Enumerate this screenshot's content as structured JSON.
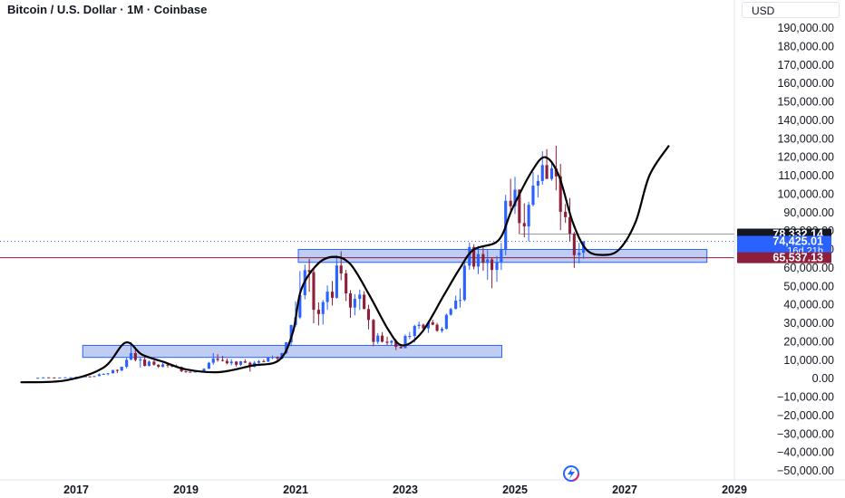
{
  "header": {
    "title": "Bitcoin / U.S. Dollar · 1M · Coinbase",
    "currency_label": "USD"
  },
  "colors": {
    "up": "#2962ff",
    "down": "#8e1f3a",
    "zone_fill": "#b4c3f2",
    "zone_stroke": "#2962ff",
    "text": "#131722",
    "axis_line": "#e0e3eb"
  },
  "logo": {
    "icon": "tradingview-bolt-icon"
  },
  "chart_data": {
    "type": "candlestick",
    "yaxis": {
      "min": -50000,
      "max": 190000,
      "ticks": [
        "190,000.00",
        "180,000.00",
        "170,000.00",
        "160,000.00",
        "150,000.00",
        "140,000.00",
        "130,000.00",
        "120,000.00",
        "110,000.00",
        "100,000.00",
        "90,000.00",
        "80,000.00",
        "70,000.00",
        "60,000.00",
        "50,000.00",
        "40,000.00",
        "30,000.00",
        "20,000.00",
        "10,000.00",
        "0.00",
        "−10,000.00",
        "−20,000.00",
        "−30,000.00",
        "−40,000.00",
        "−50,000.00"
      ]
    },
    "xaxis": {
      "labels": [
        "2017",
        "2019",
        "2021",
        "2023",
        "2025",
        "2027",
        "2029"
      ],
      "years": [
        2017,
        2019,
        2021,
        2023,
        2025,
        2027,
        2029
      ]
    },
    "price_tags": [
      {
        "value": 78332.14,
        "label": "78,332.14",
        "sub": "",
        "bg": "#131722",
        "fg": "#ffffff"
      },
      {
        "value": 74425.01,
        "label": "74,425.01",
        "sub": "16d 21h",
        "bg": "#2962ff",
        "fg": "#ffffff"
      },
      {
        "value": 65537.13,
        "label": "65,537.13",
        "sub": "",
        "bg": "#8e1f3a",
        "fg": "#ffffff"
      }
    ],
    "zones": [
      {
        "t0": 2017.12,
        "t1": 2024.76,
        "low": 11500,
        "high": 18000
      },
      {
        "t0": 2021.05,
        "t1": 2028.5,
        "low": 63000,
        "high": 70000
      }
    ],
    "horizontal_lines": [
      {
        "value": 74425.01,
        "style": "dotted",
        "color": "#2962ff"
      },
      {
        "value": 65537.13,
        "style": "solid",
        "color": "#8e1f3a"
      },
      {
        "value": 78332.14,
        "style": "solid",
        "color": "#9598a1",
        "from_t": 2025.1
      }
    ],
    "drawn_curve": [
      [
        2016.0,
        -2000
      ],
      [
        2016.8,
        -1000
      ],
      [
        2017.5,
        6000
      ],
      [
        2017.9,
        19500
      ],
      [
        2018.2,
        13000
      ],
      [
        2018.6,
        9000
      ],
      [
        2019.0,
        5000
      ],
      [
        2019.6,
        3500
      ],
      [
        2020.2,
        7000
      ],
      [
        2020.7,
        10000
      ],
      [
        2020.95,
        25000
      ],
      [
        2021.1,
        48000
      ],
      [
        2021.4,
        62000
      ],
      [
        2021.7,
        66000
      ],
      [
        2022.0,
        62000
      ],
      [
        2022.35,
        45000
      ],
      [
        2022.7,
        26000
      ],
      [
        2022.95,
        18000
      ],
      [
        2023.3,
        25000
      ],
      [
        2023.7,
        45000
      ],
      [
        2024.0,
        60000
      ],
      [
        2024.25,
        70000
      ],
      [
        2024.7,
        75000
      ],
      [
        2024.95,
        92000
      ],
      [
        2025.3,
        112000
      ],
      [
        2025.55,
        120000
      ],
      [
        2025.8,
        110000
      ],
      [
        2026.05,
        85000
      ],
      [
        2026.3,
        70000
      ],
      [
        2026.6,
        67000
      ],
      [
        2026.9,
        70000
      ],
      [
        2027.2,
        85000
      ],
      [
        2027.45,
        110000
      ],
      [
        2027.8,
        126000
      ]
    ],
    "candles": [
      [
        2016.3,
        420,
        480,
        400,
        455
      ],
      [
        2016.4,
        455,
        720,
        440,
        670
      ],
      [
        2016.5,
        670,
        700,
        600,
        624
      ],
      [
        2016.6,
        624,
        630,
        540,
        575
      ],
      [
        2016.7,
        575,
        640,
        570,
        610
      ],
      [
        2016.8,
        610,
        740,
        600,
        700
      ],
      [
        2016.9,
        700,
        760,
        690,
        745
      ],
      [
        2017.0,
        745,
        980,
        740,
        963
      ],
      [
        2017.1,
        963,
        1000,
        750,
        970
      ],
      [
        2017.17,
        970,
        1200,
        930,
        1190
      ],
      [
        2017.25,
        1190,
        1350,
        890,
        1080
      ],
      [
        2017.33,
        1080,
        1500,
        1060,
        1350
      ],
      [
        2017.42,
        1350,
        2800,
        1340,
        2300
      ],
      [
        2017.5,
        2300,
        2900,
        2100,
        2480
      ],
      [
        2017.58,
        2480,
        3000,
        1800,
        2880
      ],
      [
        2017.67,
        2880,
        4700,
        2700,
        4700
      ],
      [
        2017.75,
        4700,
        4950,
        2970,
        4340
      ],
      [
        2017.83,
        4340,
        6500,
        4100,
        6400
      ],
      [
        2017.92,
        6400,
        11400,
        5500,
        10200
      ],
      [
        2018.0,
        10200,
        19800,
        10000,
        13800
      ],
      [
        2018.08,
        13800,
        17200,
        9400,
        10100
      ],
      [
        2018.17,
        10100,
        11800,
        6000,
        10300
      ],
      [
        2018.25,
        10300,
        11700,
        6600,
        6900
      ],
      [
        2018.33,
        6900,
        9800,
        6600,
        9200
      ],
      [
        2018.42,
        9200,
        10000,
        7000,
        7500
      ],
      [
        2018.5,
        7500,
        7800,
        5800,
        6400
      ],
      [
        2018.58,
        6400,
        8500,
        6100,
        7700
      ],
      [
        2018.67,
        7700,
        7800,
        5880,
        7000
      ],
      [
        2018.75,
        7000,
        7400,
        6100,
        6600
      ],
      [
        2018.83,
        6600,
        7600,
        6200,
        6300
      ],
      [
        2018.92,
        6300,
        6500,
        3500,
        4000
      ],
      [
        2019.0,
        4000,
        4250,
        3150,
        3700
      ],
      [
        2019.08,
        3700,
        3860,
        3350,
        3430
      ],
      [
        2019.17,
        3430,
        4200,
        3390,
        3820
      ],
      [
        2019.25,
        3820,
        4100,
        3700,
        4100
      ],
      [
        2019.33,
        4100,
        5600,
        4100,
        5300
      ],
      [
        2019.42,
        5300,
        9100,
        5300,
        8550
      ],
      [
        2019.5,
        8550,
        13800,
        7500,
        10800
      ],
      [
        2019.58,
        10800,
        13200,
        9100,
        10100
      ],
      [
        2019.67,
        10100,
        12300,
        9300,
        9600
      ],
      [
        2019.75,
        9600,
        10900,
        7700,
        8300
      ],
      [
        2019.83,
        8300,
        10500,
        7300,
        9200
      ],
      [
        2019.92,
        9200,
        9500,
        6500,
        7500
      ],
      [
        2020.0,
        7500,
        9600,
        6900,
        9350
      ],
      [
        2020.08,
        9350,
        10500,
        8500,
        8600
      ],
      [
        2020.17,
        8600,
        9200,
        3800,
        6400
      ],
      [
        2020.25,
        6400,
        9500,
        6100,
        8600
      ],
      [
        2020.33,
        8600,
        10000,
        8100,
        9450
      ],
      [
        2020.42,
        9450,
        10400,
        8900,
        9150
      ],
      [
        2020.5,
        9150,
        11500,
        9000,
        11330
      ],
      [
        2020.58,
        11330,
        12500,
        10500,
        11650
      ],
      [
        2020.67,
        11650,
        12100,
        9900,
        10800
      ],
      [
        2020.75,
        10800,
        14000,
        10400,
        13800
      ],
      [
        2020.83,
        13800,
        19800,
        13200,
        19700
      ],
      [
        2020.92,
        19700,
        29300,
        17600,
        29000
      ],
      [
        2021.0,
        29000,
        41900,
        28100,
        33100
      ],
      [
        2021.08,
        33100,
        58300,
        32300,
        45200
      ],
      [
        2021.17,
        45200,
        61800,
        43000,
        58800
      ],
      [
        2021.25,
        58800,
        64900,
        47000,
        57700
      ],
      [
        2021.33,
        57700,
        59500,
        30000,
        37300
      ],
      [
        2021.42,
        37300,
        41300,
        28800,
        35000
      ],
      [
        2021.5,
        35000,
        42600,
        29300,
        41500
      ],
      [
        2021.58,
        41500,
        50500,
        37300,
        47100
      ],
      [
        2021.67,
        47100,
        52900,
        39600,
        43800
      ],
      [
        2021.75,
        43800,
        66900,
        43300,
        61300
      ],
      [
        2021.83,
        61300,
        69000,
        53300,
        57000
      ],
      [
        2021.92,
        57000,
        59000,
        42000,
        46200
      ],
      [
        2022.0,
        46200,
        47900,
        33000,
        38500
      ],
      [
        2022.08,
        38500,
        45800,
        34300,
        43200
      ],
      [
        2022.17,
        43200,
        48200,
        37200,
        45500
      ],
      [
        2022.25,
        45500,
        47400,
        37600,
        37700
      ],
      [
        2022.33,
        37700,
        40000,
        26700,
        31800
      ],
      [
        2022.42,
        31800,
        32400,
        17600,
        19900
      ],
      [
        2022.5,
        19900,
        24700,
        18800,
        23300
      ],
      [
        2022.58,
        23300,
        25200,
        19600,
        20000
      ],
      [
        2022.67,
        20000,
        22800,
        18200,
        19400
      ],
      [
        2022.75,
        19400,
        20900,
        18200,
        20500
      ],
      [
        2022.83,
        20500,
        21400,
        15500,
        17200
      ],
      [
        2022.92,
        17200,
        18400,
        16300,
        16500
      ],
      [
        2023.0,
        16500,
        23900,
        16500,
        23100
      ],
      [
        2023.08,
        23100,
        25200,
        21400,
        23100
      ],
      [
        2023.17,
        23100,
        29200,
        19600,
        28500
      ],
      [
        2023.25,
        28500,
        30900,
        26900,
        29200
      ],
      [
        2023.33,
        29200,
        29800,
        25800,
        27200
      ],
      [
        2023.42,
        27200,
        31400,
        24800,
        30500
      ],
      [
        2023.5,
        30500,
        31800,
        28900,
        29200
      ],
      [
        2023.58,
        29200,
        30200,
        25400,
        25900
      ],
      [
        2023.67,
        25900,
        28000,
        24900,
        27000
      ],
      [
        2023.75,
        27000,
        35200,
        26600,
        34600
      ],
      [
        2023.83,
        34600,
        38400,
        34100,
        37700
      ],
      [
        2023.92,
        37700,
        45000,
        37600,
        42300
      ],
      [
        2024.0,
        42300,
        48900,
        38500,
        42600
      ],
      [
        2024.08,
        42600,
        64000,
        41900,
        61200
      ],
      [
        2024.17,
        61200,
        73800,
        59000,
        71300
      ],
      [
        2024.25,
        71300,
        72800,
        59200,
        60700
      ],
      [
        2024.33,
        60700,
        71900,
        56600,
        67500
      ],
      [
        2024.42,
        67500,
        72000,
        58500,
        62700
      ],
      [
        2024.5,
        62700,
        70000,
        53500,
        64600
      ],
      [
        2024.58,
        64600,
        65600,
        49000,
        58900
      ],
      [
        2024.67,
        58900,
        66500,
        52500,
        63300
      ],
      [
        2024.75,
        63300,
        73600,
        58900,
        70200
      ],
      [
        2024.83,
        70200,
        99600,
        66800,
        96400
      ],
      [
        2024.92,
        96400,
        108300,
        90500,
        93400
      ],
      [
        2025.0,
        93400,
        109300,
        89200,
        102400
      ],
      [
        2025.08,
        102400,
        102700,
        78200,
        84300
      ],
      [
        2025.17,
        84300,
        95000,
        76600,
        82500
      ],
      [
        2025.25,
        82500,
        95800,
        74400,
        94200
      ],
      [
        2025.33,
        94200,
        111900,
        93300,
        104600
      ],
      [
        2025.42,
        104600,
        110500,
        98200,
        107100
      ],
      [
        2025.5,
        107100,
        123200,
        105100,
        115700
      ],
      [
        2025.58,
        115700,
        124400,
        108700,
        108200
      ],
      [
        2025.67,
        108200,
        117900,
        107300,
        114000
      ],
      [
        2025.75,
        114000,
        126200,
        102000,
        109600
      ],
      [
        2025.83,
        109600,
        116400,
        80500,
        90400
      ],
      [
        2025.92,
        90400,
        94600,
        84400,
        87500
      ],
      [
        2026.0,
        87500,
        97900,
        74500,
        78600
      ],
      [
        2026.08,
        78600,
        79500,
        60000,
        66900
      ],
      [
        2026.17,
        66900,
        73500,
        62500,
        68200
      ],
      [
        2026.25,
        68200,
        74425,
        65000,
        74425
      ]
    ]
  }
}
